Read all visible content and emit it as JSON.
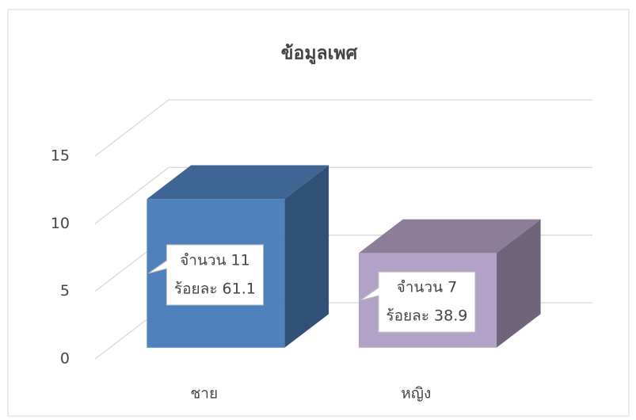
{
  "chart_data": {
    "type": "bar3d",
    "title": "ข้อมูลเพศ",
    "categories": [
      "ชาย",
      "หญิง"
    ],
    "values": [
      11,
      7
    ],
    "value_labels": [
      [
        "จำนวน 11",
        "ร้อยละ 61.1"
      ],
      [
        "จำนวน 7",
        "ร้อยละ 38.9"
      ]
    ],
    "colors": [
      "#4f81bd",
      "#b3a2c7"
    ],
    "ylim": [
      0,
      15
    ],
    "yticks": [
      0,
      5,
      10,
      15
    ],
    "grid": true
  }
}
